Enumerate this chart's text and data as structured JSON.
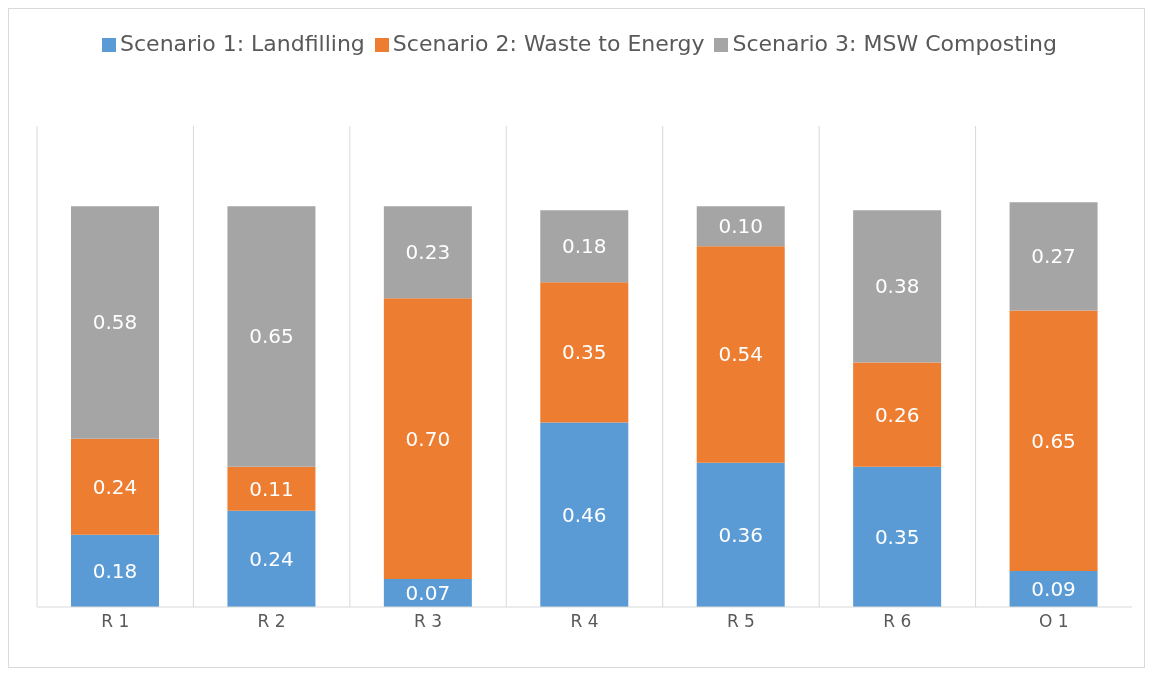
{
  "chart_data": {
    "type": "bar",
    "stacked": true,
    "categories": [
      "R 1",
      "R 2",
      "R 3",
      "R 4",
      "R 5",
      "R 6",
      "O 1"
    ],
    "ylim": [
      0,
      1.2
    ],
    "grid": "x",
    "legend": "top",
    "tick_labels": "x",
    "series": [
      {
        "name": "Scenario 1: Landfilling",
        "color": "#5b9bd5",
        "values": [
          0.18,
          0.24,
          0.07,
          0.46,
          0.36,
          0.35,
          0.09
        ],
        "value_labels": [
          "0.18",
          "0.24",
          "0.07",
          "0.46",
          "0.36",
          "0.35",
          "0.09"
        ]
      },
      {
        "name": "Scenario 2: Waste to Energy",
        "color": "#ed7d31",
        "values": [
          0.24,
          0.11,
          0.7,
          0.35,
          0.54,
          0.26,
          0.65
        ],
        "value_labels": [
          "0.24",
          "0.11",
          "0.70",
          "0.35",
          "0.54",
          "0.26",
          "0.65"
        ]
      },
      {
        "name": "Scenario 3: MSW Composting",
        "color": "#a5a5a5",
        "values": [
          0.58,
          0.65,
          0.23,
          0.18,
          0.1,
          0.38,
          0.27
        ],
        "value_labels": [
          "0.58",
          "0.65",
          "0.23",
          "0.18",
          "0.10",
          "0.38",
          "0.27"
        ]
      }
    ]
  }
}
